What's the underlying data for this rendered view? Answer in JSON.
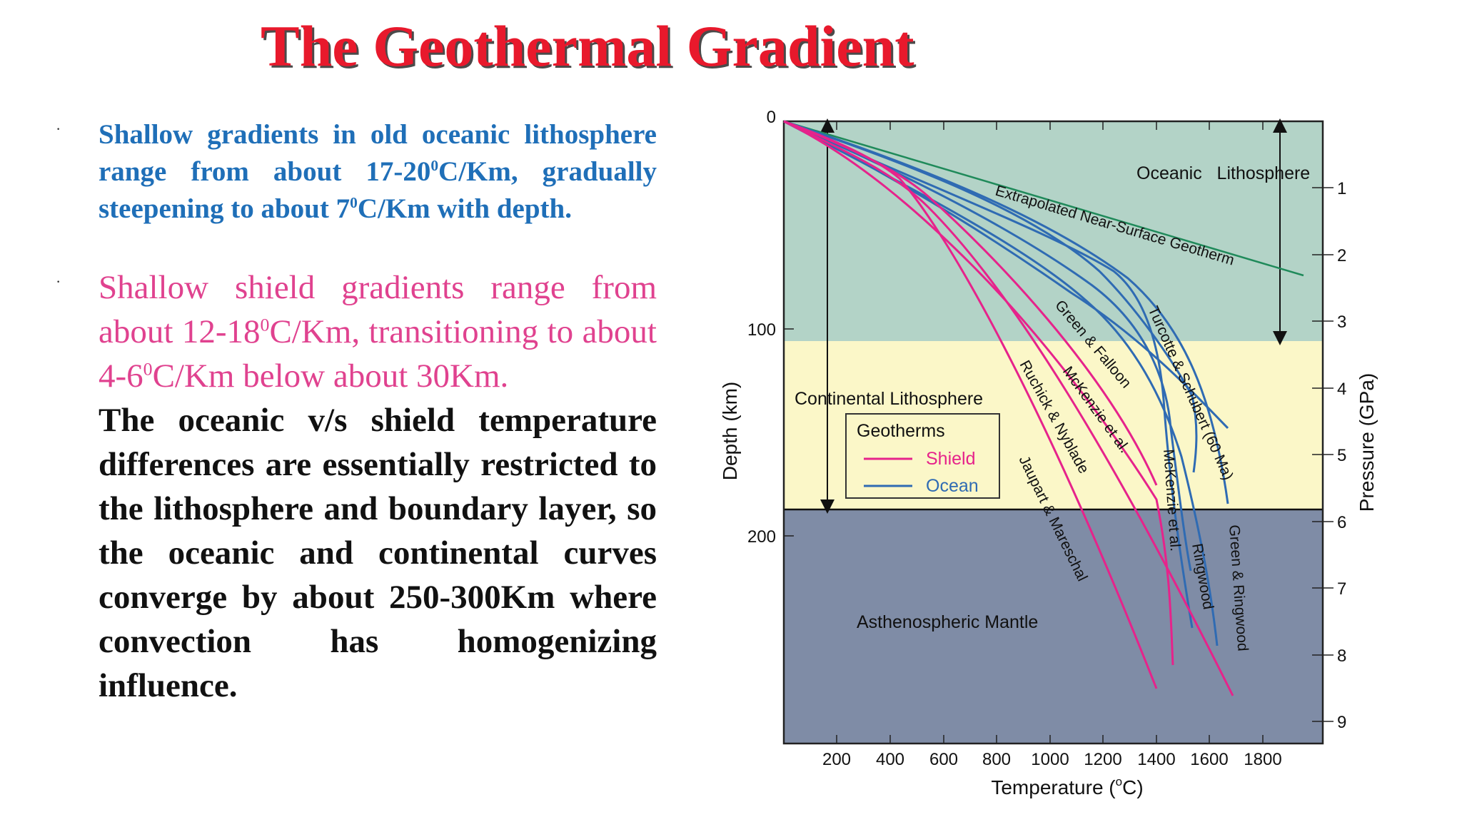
{
  "slide": {
    "title": "The Geothermal Gradient"
  },
  "bullets": {
    "dot_1": "·",
    "dot_2": "·",
    "p1_a": "Shallow gradients in old oceanic lithosphere range from about 17-20",
    "p1_sup1": "0",
    "p1_b": "C/Km, gradually steepening to about 7",
    "p1_sup2": "0",
    "p1_c": "C/Km with depth.",
    "p2_a": "Shallow shield gradients range from about 12-18",
    "p2_sup1": "0",
    "p2_b": "C/Km, transitioning to about 4-6",
    "p2_sup2": "0",
    "p2_c": "C/Km below about 30Km.",
    "p3": "The oceanic v/s shield temperature differences are essentially restricted to the lithosphere and boundary layer, so the oceanic and continental curves converge by about 250-300Km where convection has homogenizing influence."
  },
  "diagram": {
    "colors": {
      "oceanic": "#b3d3c7",
      "continental": "#fbf7c8",
      "asthenosphere": "#7f8ca6",
      "shield": "#e6238b",
      "ocean": "#2f6bb3",
      "extrapolated": "#1f8a5a"
    },
    "axes": {
      "xlabel_main": "Temperature (",
      "xlabel_sup": "o",
      "xlabel_end": "C)",
      "ylabel_left": "Depth (km)",
      "ylabel_right": "Pressure (GPa)",
      "xticks": [
        "200",
        "400",
        "600",
        "800",
        "1000",
        "1200",
        "1400",
        "1600",
        "1800"
      ],
      "depth_ticks": [
        "0",
        "100",
        "200"
      ],
      "pressure_ticks": [
        "1",
        "2",
        "3",
        "4",
        "5",
        "6",
        "7",
        "8",
        "9"
      ]
    },
    "zones": {
      "oceanic": "Oceanic   Lithosphere",
      "continental": "Continental Lithosphere",
      "asthenosphere": "Asthenospheric Mantle"
    },
    "legend": {
      "title": "Geotherms",
      "shield": "Shield",
      "ocean": "Ocean"
    },
    "curve_labels": {
      "extrapolated": "Extrapolated Near-Surface Geotherm",
      "green_falloon": "Green & Falloon",
      "turcotte": "Turcotte & Schubert (60 Ma)",
      "mckenzie_shield": "McKenzie et al.",
      "ruchick": "Ruchick & Nyblade",
      "jaupart": "Jaupart & Mareschal",
      "mckenzie_ocean": "McKenzie et al.",
      "ringwood": "Ringwood",
      "green_ringwood": "Green & Ringwood"
    }
  }
}
